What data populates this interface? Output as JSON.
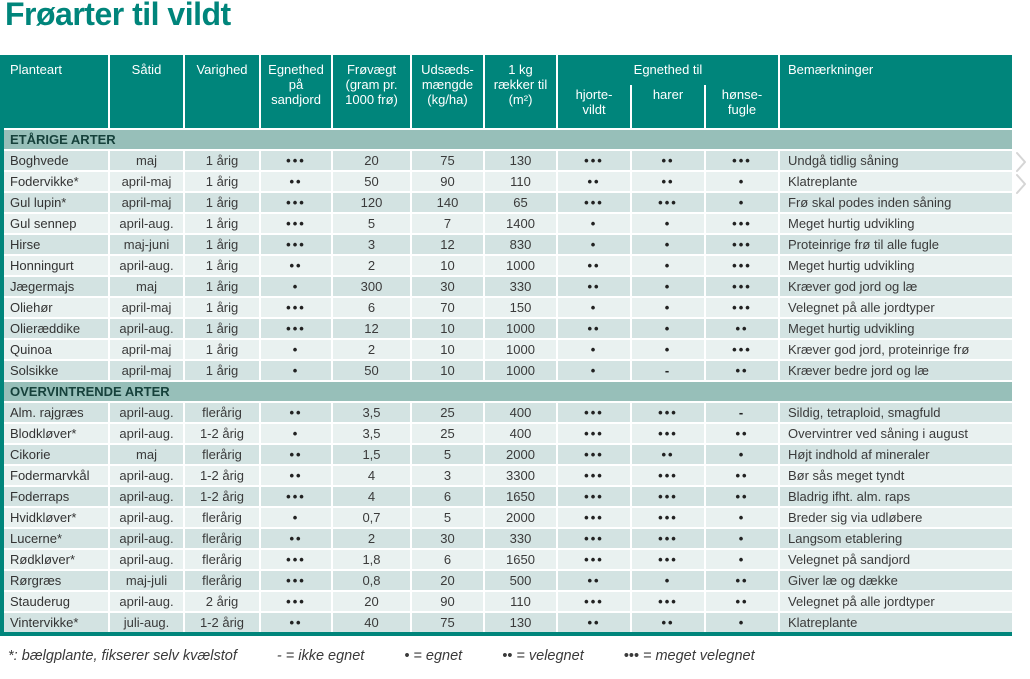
{
  "title": "Frøarter til vildt",
  "colors": {
    "accent_teal": "#00857B",
    "section_bg": "#97BFB9",
    "row_dark": "#D3E3E2",
    "row_light": "#E9F1F0",
    "header_text": "#FFFFFF",
    "body_text": "#3A3A3A"
  },
  "icons": {
    "right_margin_marks": "double-chevron-right"
  },
  "table": {
    "headers": {
      "planteart": "Planteart",
      "saatid": "Såtid",
      "varighed": "Varighed",
      "egnethed_sandjord": "Egnethed\npå\nsandjord",
      "froevaegt": "Frøvægt\n(gram pr.\n1000 frø)",
      "udsaedsmaengde": "Udsæds-\nmængde\n(kg/ha)",
      "raekker_til": "1 kg\nrækker til\n(m²)",
      "group": "Egnethed til",
      "hjortevildt": "hjorte-\nvildt",
      "harer": "harer",
      "hoensefugle": "hønse-\nfugle",
      "bemaerkninger": "Bemærkninger"
    },
    "sections": [
      {
        "label": "ETÅRIGE ARTER",
        "rows": [
          [
            "Boghvede",
            "maj",
            "1 årig",
            "•••",
            "20",
            "75",
            "130",
            "•••",
            "••",
            "•••",
            "Undgå tidlig såning"
          ],
          [
            "Fodervikke*",
            "april-maj",
            "1 årig",
            "••",
            "50",
            "90",
            "110",
            "••",
            "••",
            "•",
            "Klatreplante"
          ],
          [
            "Gul lupin*",
            "april-maj",
            "1 årig",
            "•••",
            "120",
            "140",
            "65",
            "•••",
            "•••",
            "•",
            "Frø skal podes inden såning"
          ],
          [
            "Gul sennep",
            "april-aug.",
            "1 årig",
            "•••",
            "5",
            "7",
            "1400",
            "•",
            "•",
            "•••",
            "Meget hurtig udvikling"
          ],
          [
            "Hirse",
            "maj-juni",
            "1 årig",
            "•••",
            "3",
            "12",
            "830",
            "•",
            "•",
            "•••",
            "Proteinrige frø til alle fugle"
          ],
          [
            "Honningurt",
            "april-aug.",
            "1 årig",
            "••",
            "2",
            "10",
            "1000",
            "••",
            "•",
            "•••",
            "Meget hurtig udvikling"
          ],
          [
            "Jægermajs",
            "maj",
            "1 årig",
            "•",
            "300",
            "30",
            "330",
            "••",
            "•",
            "•••",
            "Kræver god jord og læ"
          ],
          [
            "Oliehør",
            "april-maj",
            "1 årig",
            "•••",
            "6",
            "70",
            "150",
            "•",
            "•",
            "•••",
            "Velegnet på alle jordtyper"
          ],
          [
            "Olieræddike",
            "april-aug.",
            "1 årig",
            "•••",
            "12",
            "10",
            "1000",
            "••",
            "•",
            "••",
            "Meget hurtig udvikling"
          ],
          [
            "Quinoa",
            "april-maj",
            "1 årig",
            "•",
            "2",
            "10",
            "1000",
            "•",
            "•",
            "•••",
            "Kræver god jord, proteinrige frø"
          ],
          [
            "Solsikke",
            "april-maj",
            "1 årig",
            "•",
            "50",
            "10",
            "1000",
            "•",
            "-",
            "••",
            "Kræver bedre jord og læ"
          ]
        ]
      },
      {
        "label": "OVERVINTRENDE ARTER",
        "rows": [
          [
            "Alm. rajgræs",
            "april-aug.",
            "flerårig",
            "••",
            "3,5",
            "25",
            "400",
            "•••",
            "•••",
            "-",
            "Sildig, tetraploid, smagfuld"
          ],
          [
            "Blodkløver*",
            "april-aug.",
            "1-2 årig",
            "•",
            "3,5",
            "25",
            "400",
            "•••",
            "•••",
            "••",
            "Overvintrer ved såning i august"
          ],
          [
            "Cikorie",
            "maj",
            "flerårig",
            "••",
            "1,5",
            "5",
            "2000",
            "•••",
            "••",
            "•",
            "Højt indhold af mineraler"
          ],
          [
            "Fodermarvkål",
            "april-aug.",
            "1-2 årig",
            "••",
            "4",
            "3",
            "3300",
            "•••",
            "•••",
            "••",
            "Bør sås meget tyndt"
          ],
          [
            "Foderraps",
            "april-aug.",
            "1-2 årig",
            "•••",
            "4",
            "6",
            "1650",
            "•••",
            "•••",
            "••",
            "Bladrig ifht. alm. raps"
          ],
          [
            "Hvidkløver*",
            "april-aug.",
            "flerårig",
            "•",
            "0,7",
            "5",
            "2000",
            "•••",
            "•••",
            "•",
            "Breder sig via udløbere"
          ],
          [
            "Lucerne*",
            "april-aug.",
            "flerårig",
            "••",
            "2",
            "30",
            "330",
            "•••",
            "•••",
            "•",
            "Langsom etablering"
          ],
          [
            "Rødkløver*",
            "april-aug.",
            "flerårig",
            "•••",
            "1,8",
            "6",
            "1650",
            "•••",
            "•••",
            "•",
            "Velegnet på sandjord"
          ],
          [
            "Rørgræs",
            "maj-juli",
            "flerårig",
            "•••",
            "0,8",
            "20",
            "500",
            "••",
            "•",
            "••",
            "Giver læ og dække"
          ],
          [
            "Stauderug",
            "april-aug.",
            "2 årig",
            "•••",
            "20",
            "90",
            "110",
            "•••",
            "•••",
            "••",
            "Velegnet på alle jordtyper"
          ],
          [
            "Vintervikke*",
            "juli-aug.",
            "1-2 årig",
            "••",
            "40",
            "75",
            "130",
            "••",
            "••",
            "•",
            "Klatreplante"
          ]
        ]
      }
    ]
  },
  "legend": {
    "note": "*: bælgplante, fikserer selv kvælstof",
    "items": [
      "- = ikke egnet",
      "• = egnet",
      "•• = velegnet",
      "••• = meget velegnet"
    ]
  }
}
